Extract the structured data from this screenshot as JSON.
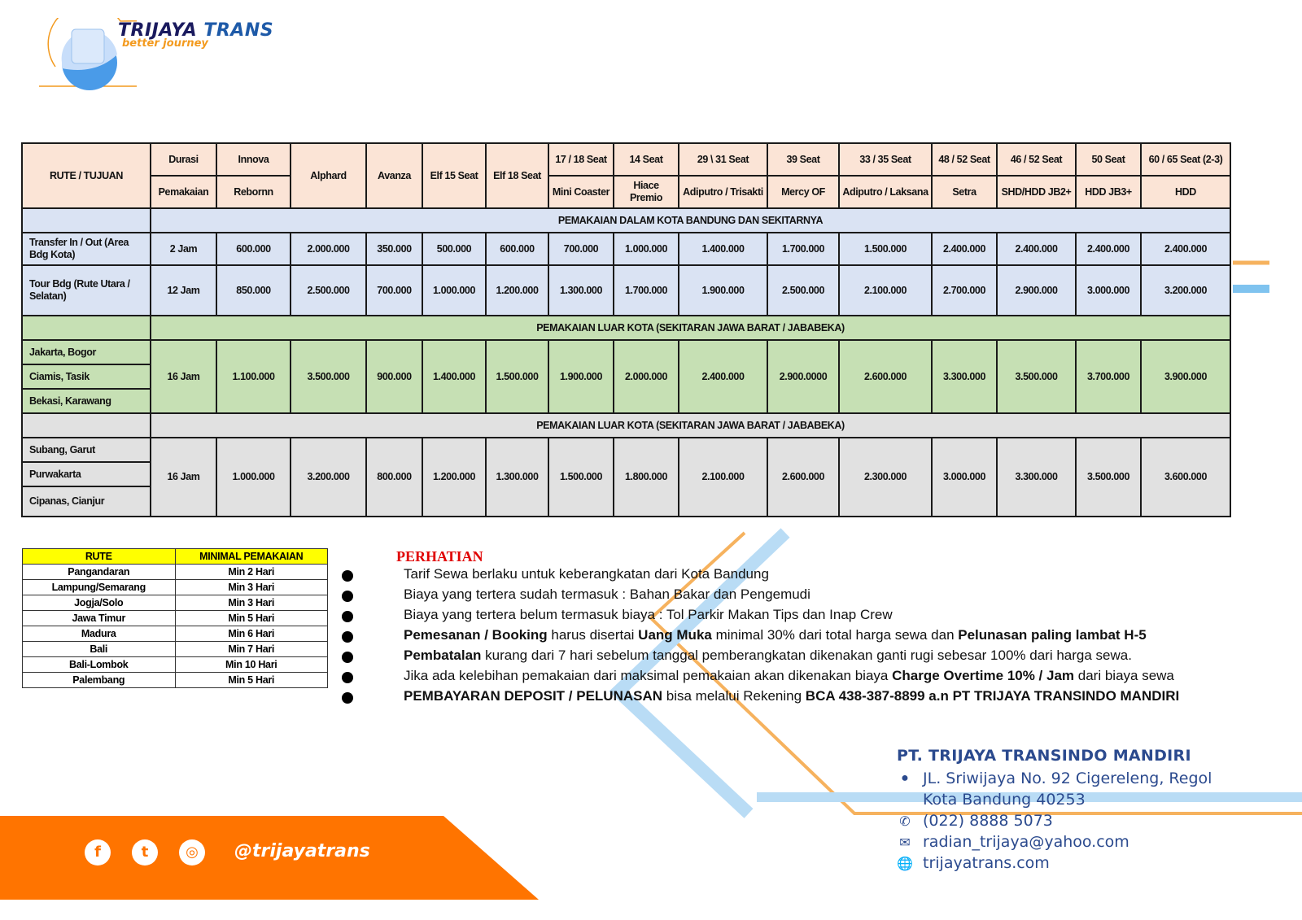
{
  "brand": {
    "name_part1": "TRIJAYA",
    "name_part2": "TRANS",
    "tagline": "better journey",
    "colors": {
      "orange": "#ff7400",
      "blue": "#2b4a8e",
      "header": "#fbe4d6",
      "city": "#dae3f3",
      "outer1": "#c6e0b4",
      "outer2": "#e1e1e1",
      "yellow": "#ffff00"
    }
  },
  "price_table": {
    "route_header": "RUTE / TUJUAN",
    "columns": [
      {
        "top": "Durasi",
        "bottom": "Pemakaian"
      },
      {
        "top": "Innova",
        "bottom": "Rebornn"
      },
      {
        "top": "Alphard",
        "bottom": ""
      },
      {
        "top": "Avanza",
        "bottom": ""
      },
      {
        "top": "Elf 15 Seat",
        "bottom": ""
      },
      {
        "top": "Elf 18 Seat",
        "bottom": ""
      },
      {
        "top": "17 / 18 Seat",
        "bottom": "Mini Coaster"
      },
      {
        "top": "14 Seat",
        "bottom": "Hiace Premio"
      },
      {
        "top": "29 \\ 31 Seat",
        "bottom": "Adiputro / Trisakti"
      },
      {
        "top": "39 Seat",
        "bottom": "Mercy OF"
      },
      {
        "top": "33 / 35 Seat",
        "bottom": "Adiputro / Laksana"
      },
      {
        "top": "48 / 52 Seat",
        "bottom": "Setra"
      },
      {
        "top": "46 / 52 Seat",
        "bottom": "SHD/HDD JB2+"
      },
      {
        "top": "50 Seat",
        "bottom": "HDD JB3+"
      },
      {
        "top": "60 / 65 Seat (2-3)",
        "bottom": "HDD"
      }
    ],
    "sections": [
      {
        "title": "PEMAKAIAN DALAM KOTA BANDUNG DAN SEKITARNYA",
        "style": "blue",
        "rows": [
          {
            "routes": [
              "Transfer In / Out (Area Bdg Kota)"
            ],
            "values": [
              "2 Jam",
              "600.000",
              "2.000.000",
              "350.000",
              "500.000",
              "600.000",
              "700.000",
              "1.000.000",
              "1.400.000",
              "1.700.000",
              "1.500.000",
              "2.400.000",
              "2.400.000",
              "2.400.000",
              "2.400.000"
            ]
          },
          {
            "routes": [
              "Tour Bdg (Rute Utara / Selatan)"
            ],
            "values": [
              "12 Jam",
              "850.000",
              "2.500.000",
              "700.000",
              "1.000.000",
              "1.200.000",
              "1.300.000",
              "1.700.000",
              "1.900.000",
              "2.500.000",
              "2.100.000",
              "2.700.000",
              "2.900.000",
              "3.000.000",
              "3.200.000"
            ]
          }
        ]
      },
      {
        "title": "PEMAKAIAN LUAR KOTA (SEKITARAN JAWA BARAT / JABABEKA)",
        "style": "green",
        "rows": [
          {
            "routes": [
              "Jakarta, Bogor",
              "Ciamis, Tasik",
              "Bekasi, Karawang"
            ],
            "values": [
              "16 Jam",
              "1.100.000",
              "3.500.000",
              "900.000",
              "1.400.000",
              "1.500.000",
              "1.900.000",
              "2.000.000",
              "2.400.000",
              "2.900.0000",
              "2.600.000",
              "3.300.000",
              "3.500.000",
              "3.700.000",
              "3.900.000"
            ]
          }
        ]
      },
      {
        "title": "PEMAKAIAN LUAR KOTA (SEKITARAN JAWA BARAT / JABABEKA)",
        "style": "grey",
        "rows": [
          {
            "routes": [
              "Subang, Garut",
              "Purwakarta",
              "Cipanas, Cianjur"
            ],
            "values": [
              "16 Jam",
              "1.000.000",
              "3.200.000",
              "800.000",
              "1.200.000",
              "1.300.000",
              "1.500.000",
              "1.800.000",
              "2.100.000",
              "2.600.000",
              "2.300.000",
              "3.000.000",
              "3.300.000",
              "3.500.000",
              "3.600.000"
            ]
          }
        ]
      }
    ]
  },
  "min_table": {
    "headers": [
      "RUTE",
      "MINIMAL PEMAKAIAN"
    ],
    "rows": [
      [
        "Pangandaran",
        "Min 2 Hari"
      ],
      [
        "Lampung/Semarang",
        "Min 3 Hari"
      ],
      [
        "Jogja/Solo",
        "Min 3 Hari"
      ],
      [
        "Jawa Timur",
        "Min 5 Hari"
      ],
      [
        "Madura",
        "Min 6 Hari"
      ],
      [
        "Bali",
        "Min 7 Hari"
      ],
      [
        "Bali-Lombok",
        "Min 10 Hari"
      ],
      [
        "Palembang",
        "Min 5 Hari"
      ]
    ]
  },
  "notes": {
    "title": "PERHATIAN",
    "items": [
      [
        {
          "t": "Tarif Sewa berlaku untuk keberangkatan dari Kota Bandung",
          "b": false
        }
      ],
      [
        {
          "t": "Biaya yang tertera sudah termasuk : Bahan Bakar dan Pengemudi",
          "b": false
        }
      ],
      [
        {
          "t": "Biaya yang tertera belum termasuk biaya : Tol Parkir Makan Tips dan Inap Crew",
          "b": false
        }
      ],
      [
        {
          "t": "Pemesanan / Booking",
          "b": true
        },
        {
          "t": " harus disertai ",
          "b": false
        },
        {
          "t": "Uang Muka",
          "b": true
        },
        {
          "t": " minimal 30% dari total harga sewa dan ",
          "b": false
        },
        {
          "t": "Pelunasan paling lambat H-5",
          "b": true
        }
      ],
      [
        {
          "t": "Pembatalan",
          "b": true
        },
        {
          "t": " kurang dari 7 hari sebelum tanggal pemberangkatan dikenakan ganti rugi sebesar 100% dari harga sewa.",
          "b": false
        }
      ],
      [
        {
          "t": "Jika ada kelebihan pemakaian dari maksimal pemakaian akan dikenakan biaya ",
          "b": false
        },
        {
          "t": "Charge Overtime 10% / Jam",
          "b": true
        },
        {
          "t": " dari biaya sewa",
          "b": false
        }
      ],
      [
        {
          "t": "PEMBAYARAN DEPOSIT / PELUNASAN",
          "b": true
        },
        {
          "t": " bisa melalui Rekening ",
          "b": false
        },
        {
          "t": "BCA 438-387-8899 a.n PT TRIJAYA TRANSINDO MANDIRI",
          "b": true
        }
      ]
    ]
  },
  "footer": {
    "social_icons": [
      "facebook-icon",
      "twitter-icon",
      "instagram-icon"
    ],
    "handle": "@trijayatrans",
    "company": "PT. TRIJAYA TRANSINDO MANDIRI",
    "address1": "JL. Sriwijaya No. 92 Cigereleng, Regol",
    "address2": "Kota Bandung 40253",
    "phone": "(022) 8888 5073",
    "email": "radian_trijaya@yahoo.com",
    "website": "trijayatrans.com"
  }
}
